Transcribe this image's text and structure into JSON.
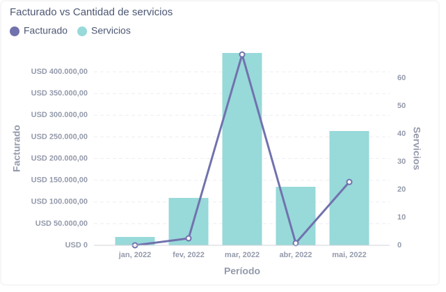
{
  "chart_data": {
    "type": "combo",
    "title": "Facturado vs Cantidad de servicios",
    "x_label": "Período",
    "y_label": "Facturado",
    "y2_label": "Servicios",
    "categories": [
      "jan, 2022",
      "fev, 2022",
      "mar, 2022",
      "abr, 2022",
      "mai, 2022"
    ],
    "series": [
      {
        "name": "Facturado",
        "color": "#7172ad",
        "type": "line",
        "axis": "y",
        "values": [
          0,
          16000,
          440000,
          5000,
          146000
        ]
      },
      {
        "name": "Servicios",
        "color": "#98d9d9",
        "type": "bar",
        "axis": "y2",
        "values": [
          3,
          17,
          69,
          21,
          41
        ]
      }
    ],
    "ylim": [
      0,
      450000
    ],
    "yticks": [
      {
        "value": 0,
        "label": "USD 0"
      },
      {
        "value": 50000,
        "label": "USD 50.000,00"
      },
      {
        "value": 100000,
        "label": "USD 100.000,00"
      },
      {
        "value": 150000,
        "label": "USD 150.000,00"
      },
      {
        "value": 200000,
        "label": "USD 200.000,00"
      },
      {
        "value": 250000,
        "label": "USD 250.000,00"
      },
      {
        "value": 300000,
        "label": "USD 300.000,00"
      },
      {
        "value": 350000,
        "label": "USD 350.000,00"
      },
      {
        "value": 400000,
        "label": "USD 400.000,00"
      }
    ],
    "y2lim": [
      0,
      70
    ],
    "y2ticks": [
      0,
      10,
      20,
      30,
      40,
      50,
      60
    ],
    "grid": true
  }
}
